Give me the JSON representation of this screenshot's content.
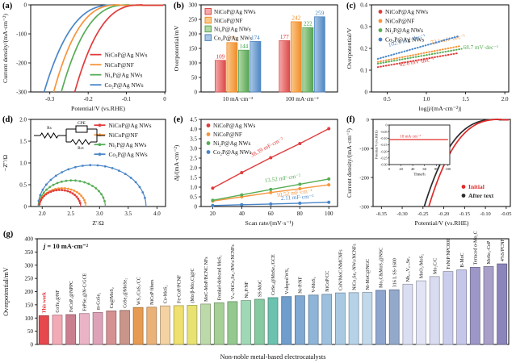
{
  "figure": {
    "background": "#ffffff"
  },
  "palette": {
    "red": {
      "line": "#e23b3b",
      "fill": "#f6a9a9",
      "edge": "#dc4a4a",
      "label": "#e02a2a"
    },
    "orange": {
      "line": "#f6953c",
      "fill": "#fbc98b",
      "edge": "#f08c28",
      "label": "#ee8418"
    },
    "green": {
      "line": "#57ad57",
      "fill": "#b2d8a4",
      "edge": "#55a455",
      "label": "#2f9e3e"
    },
    "blue": {
      "line": "#4a86c8",
      "fill": "#a9c7e6",
      "edge": "#4f86c2",
      "label": "#3f7fc1"
    },
    "black": "#222222"
  },
  "panels": {
    "a": {
      "label": "(a)"
    },
    "b": {
      "label": "(b)"
    },
    "c": {
      "label": "(c)"
    },
    "d": {
      "label": "(d)"
    },
    "e": {
      "label": "(e)"
    },
    "f": {
      "label": "(f)"
    },
    "g": {
      "label": "(g)"
    }
  },
  "chart_data": [
    {
      "panel": "a",
      "type": "line",
      "xlabel": "Potential/V (vs.RHE)",
      "ylabel": "Current density/(mA·cm⁻²)",
      "xlim": [
        -0.35,
        0.002
      ],
      "ylim": [
        -300,
        0
      ],
      "xticks": [
        -0.3,
        -0.2,
        -0.1,
        0
      ],
      "xtick_labels": [
        "-0.3",
        "-0.2",
        "-0.1",
        "0"
      ],
      "yticks": [
        0,
        -100,
        -200,
        -300
      ],
      "ytick_labels": [
        "0",
        "-100",
        "-200",
        "-300"
      ],
      "legend_position": "bottom-right",
      "series": [
        {
          "name": "NiCoP@Ag NWs",
          "color_key": "red",
          "onset": -0.056,
          "v_at_300": -0.235
        },
        {
          "name": "NiCoP@NF",
          "color_key": "orange",
          "onset": -0.115,
          "v_at_300": -0.29
        },
        {
          "name": "Ni₂P@Ag NWs",
          "color_key": "green",
          "onset": -0.091,
          "v_at_300": -0.27
        },
        {
          "name": "Co₂P@Ag NWs",
          "color_key": "blue",
          "onset": -0.125,
          "v_at_300": -0.315
        }
      ]
    },
    {
      "panel": "b",
      "type": "grouped-bar",
      "ylabel": "Overpotential/mV",
      "xlim": [
        0,
        1
      ],
      "ylim": [
        0,
        300
      ],
      "yticks": [
        0,
        50,
        100,
        150,
        200,
        250,
        300
      ],
      "ytick_labels": [
        "0",
        "50",
        "100",
        "150",
        "200",
        "250",
        "300"
      ],
      "categories": [
        "10 mA·cm⁻²",
        "100 mA·cm⁻²"
      ],
      "legend_position": "top-left",
      "series": [
        {
          "name": "NiCoP@Ag NWs",
          "color_key": "red",
          "values": [
            109,
            177
          ]
        },
        {
          "name": "NiCoP@NF",
          "color_key": "orange",
          "values": [
            170,
            242
          ]
        },
        {
          "name": "Ni₂P@Ag NWs",
          "color_key": "green",
          "values": [
            144,
            222
          ]
        },
        {
          "name": "Co₂P@Ag NWs",
          "color_key": "blue",
          "values": [
            174,
            259
          ]
        }
      ]
    },
    {
      "panel": "c",
      "type": "line",
      "xlabel": "log|j/(mA·cm⁻²)|",
      "ylabel": "Overpotential/V",
      "xlim": [
        0.3,
        2.05
      ],
      "ylim": [
        0,
        0.4
      ],
      "xticks": [
        0.5,
        1.0,
        1.5,
        2.0
      ],
      "xtick_labels": [
        "0.5",
        "1.0",
        "1.5",
        "2.0"
      ],
      "yticks": [
        0,
        0.1,
        0.2,
        0.3,
        0.4
      ],
      "ytick_labels": [
        "0",
        "0.1",
        "0.2",
        "0.3",
        "0.4"
      ],
      "legend_position": "top-left",
      "series": [
        {
          "name": "NiCoP@Ag NWs",
          "color_key": "red",
          "x": [
            0.38,
            1.4
          ],
          "y": [
            0.114,
            0.178
          ],
          "slope_label": "62.6 mV·dec⁻¹",
          "label_at": [
            0.66,
            0.118
          ],
          "label_angle": -9
        },
        {
          "name": "NiCoP@NF",
          "color_key": "orange",
          "x": [
            0.38,
            1.42
          ],
          "y": [
            0.138,
            0.21
          ],
          "slope_label": "72.1 mV·dec⁻¹",
          "label_at": [
            1.06,
            0.218
          ],
          "label_angle": -11
        },
        {
          "name": "Ni₂P@Ag NWs",
          "color_key": "green",
          "x": [
            0.38,
            1.45
          ],
          "y": [
            0.13,
            0.198
          ],
          "slope_label": "68.7 mV·dec⁻¹",
          "label_at": [
            1.47,
            0.196
          ],
          "label_angle": 0
        },
        {
          "name": "Co₂P@Ag NWs",
          "color_key": "blue",
          "x": [
            0.38,
            1.4
          ],
          "y": [
            0.152,
            0.255
          ],
          "slope_label": "102.1 mV·dec⁻¹",
          "label_at": [
            0.52,
            0.208
          ],
          "label_angle": -14
        }
      ]
    },
    {
      "panel": "d",
      "type": "nyquist",
      "xlabel": "Z′/Ω",
      "ylabel": "−Z″/Ω",
      "xlim": [
        1.8,
        4.15
      ],
      "ylim": [
        0,
        2.0
      ],
      "xticks": [
        2.0,
        2.5,
        3.0,
        3.5,
        4.0
      ],
      "xtick_labels": [
        "2.0",
        "2.5",
        "3.0",
        "3.5",
        "4.0"
      ],
      "yticks": [
        0,
        0.5,
        1.0,
        1.5,
        2.0
      ],
      "ytick_labels": [
        "0",
        "0.5",
        "1.0",
        "1.5",
        "2.0"
      ],
      "legend_position": "top-right",
      "circuit": {
        "rs": "Rs",
        "cpe": "CPE",
        "rct": "Rct"
      },
      "series": [
        {
          "name": "NiCoP@Ag NWs",
          "color_key": "red",
          "x_start": 1.95,
          "x_end": 2.67,
          "peak": 0.38
        },
        {
          "name": "NiCoP@NF",
          "color_key": "orange",
          "x_start": 1.95,
          "x_end": 2.76,
          "peak": 0.42
        },
        {
          "name": "Ni₂P@Ag NWs",
          "color_key": "green",
          "x_start": 1.94,
          "x_end": 3.1,
          "peak": 0.6
        },
        {
          "name": "Co₂P@Ag NWs",
          "color_key": "blue",
          "x_start": 1.93,
          "x_end": 3.81,
          "peak": 0.95
        }
      ]
    },
    {
      "panel": "e",
      "type": "scatter-line",
      "xlabel": "Scan rate/(mV·s⁻¹)",
      "ylabel": "Δj/(mA·cm⁻²)",
      "xlim": [
        12,
        106
      ],
      "ylim": [
        0,
        4.5
      ],
      "xticks": [
        20,
        40,
        60,
        80,
        100
      ],
      "xtick_labels": [
        "20",
        "40",
        "60",
        "80",
        "100"
      ],
      "yticks": [
        0,
        0.5,
        1,
        1.5,
        2,
        2.5,
        3,
        3.5,
        4,
        4.5
      ],
      "ytick_labels": [
        "0",
        "0.5",
        "1.0",
        "1.5",
        "2.0",
        "2.5",
        "3.0",
        "3.5",
        "4.0",
        "4.5"
      ],
      "legend_position": "top-left",
      "x": [
        20,
        40,
        60,
        80,
        100
      ],
      "series": [
        {
          "name": "NiCoP@Ag NWs",
          "color_key": "red",
          "values": [
            0.95,
            1.75,
            2.52,
            3.25,
            4.02
          ],
          "slope_label": "38.39 mF·cm⁻²",
          "label_at": [
            47,
            2.55
          ],
          "label_angle": -28
        },
        {
          "name": "NiCoP@NF",
          "color_key": "orange",
          "values": [
            0.28,
            0.5,
            0.72,
            0.92,
            1.12
          ],
          "slope_label": "10.52 mF·cm⁻²",
          "label_at": [
            64,
            0.5
          ],
          "label_angle": -7
        },
        {
          "name": "Ni₂P@Ag NWs",
          "color_key": "green",
          "values": [
            0.32,
            0.6,
            0.88,
            1.15,
            1.42
          ],
          "slope_label": "13.52 mF·cm⁻²",
          "label_at": [
            56,
            1.24
          ],
          "label_angle": -8
        },
        {
          "name": "Co₂P@Ag NWs",
          "color_key": "blue",
          "values": [
            0.05,
            0.09,
            0.13,
            0.17,
            0.22
          ],
          "slope_label": "2.11 mF·cm⁻²",
          "label_at": [
            67,
            0.34
          ],
          "label_angle": -3
        }
      ]
    },
    {
      "panel": "f",
      "type": "line",
      "xlabel": "Potential/V (vs.RHE)",
      "ylabel": "Current density/(mA·cm⁻²)",
      "xlim": [
        -0.37,
        -0.04
      ],
      "ylim": [
        -300,
        0
      ],
      "xticks": [
        -0.35,
        -0.3,
        -0.25,
        -0.2,
        -0.15,
        -0.1,
        -0.05
      ],
      "xtick_labels": [
        "-0.35",
        "-0.30",
        "-0.25",
        "-0.20",
        "-0.15",
        "-0.10",
        "-0.05"
      ],
      "yticks": [
        0,
        -100,
        -200,
        -300
      ],
      "ytick_labels": [
        "0",
        "-100",
        "-200",
        "-300"
      ],
      "legend_position": "bottom-right",
      "series": [
        {
          "name": "Initial",
          "color": "#e02a2a",
          "onset": -0.058,
          "v_at_300": -0.236
        },
        {
          "name": "After text",
          "color": "#2b2b2b",
          "onset": -0.066,
          "v_at_300": -0.247
        }
      ],
      "inset": {
        "xlabel": "Time/h",
        "ylabel": "Potential/V (vs.RHE)",
        "xlim": [
          0,
          103
        ],
        "ylim": [
          -0.3,
          0
        ],
        "xticks": [
          0,
          20,
          40,
          60,
          80,
          100
        ],
        "xtick_labels": [
          "0",
          "20",
          "40",
          "60",
          "80",
          "100"
        ],
        "yticks": [
          0,
          -0.05,
          -0.1,
          -0.15,
          -0.2,
          -0.25,
          -0.3
        ],
        "ytick_labels": [
          "0",
          "-0.05",
          "-0.10",
          "-0.15",
          "-0.20",
          "-0.25",
          "-0.30"
        ],
        "line_y": -0.11,
        "annotation": "10 mA·cm⁻²"
      }
    },
    {
      "panel": "g",
      "type": "bar",
      "annotation_italic": "j",
      "annotation_rest": " = 10 mA·cm⁻²",
      "xlabel": "Non-noble metal-based electrocatalysts",
      "ylabel": "Overpotential/mV",
      "xlim": [
        0,
        1
      ],
      "ylim": [
        0,
        400
      ],
      "yticks": [
        0,
        50,
        100,
        150,
        200,
        250,
        300,
        350,
        400
      ],
      "ytick_labels": [
        "0",
        "50",
        "100",
        "150",
        "200",
        "250",
        "300",
        "350",
        "400"
      ],
      "highlight_index": 0,
      "highlight_color": "#e02a2a",
      "categories": [
        "This work",
        "CoTe₂@NF",
        "FeCoP₂@NPPC",
        "FePSe₃@N-C/GCE",
        "m-CoSe₂",
        "Cu@MoS₂",
        "CoSe₂@MoSe₂",
        "WS₂/CoS₂/CC",
        "NiCoP fibers",
        "Co-MoS₂",
        "Fe-CoP/PCNF",
        "(Mo/β-Mo₂C)@C",
        "MoC-MoP/BCNC NFs",
        "Frenkel-defected MoS₂",
        "Vₛₑ-NiCo₂Se₄-NWs/NCNFs",
        "Ni₂P/NF",
        "SS-MoC",
        "CoSe₂@MoSe₂/GCE",
        "V-doped WS₂",
        "Ni-P/NF",
        "V-MoS₂",
        "NiCoP/CC",
        "CoN/MoC/NMCNFs",
        "NiCo₂Se₄-NWs/NCNFs",
        "Ni-MoC@NGC",
        "Mo₂C&MoS₂@NSC",
        "316 L SS-1600",
        "Nb₀.₅V₀.₅Se₂",
        "MoO₂/MoS₂",
        "Mo₂C/C",
        "FeNiP/NPC800",
        "B-MoC",
        "Terraced α-Mo₂C",
        "MoSe₂-CoP",
        "4%S/PCNF"
      ],
      "values": [
        109,
        111,
        113,
        117,
        121,
        127,
        129,
        140,
        141,
        146,
        147,
        148,
        153,
        158,
        162,
        166,
        171,
        177,
        181,
        184,
        187,
        190,
        195,
        196,
        197,
        205,
        207,
        228,
        241,
        257,
        276,
        282,
        292,
        295,
        305
      ],
      "colors": [
        "#e6484d",
        "#f2aab6",
        "#ca7f8f",
        "#eab4c6",
        "#dda2b8",
        "#d59191",
        "#c9958a",
        "#e79b52",
        "#ebb277",
        "#f4d2a2",
        "#efe070",
        "#e7e272",
        "#bcdaa9",
        "#a5d096",
        "#93c98f",
        "#a0d8b5",
        "#86caa2",
        "#6ac2af",
        "#6f9ecd",
        "#7fa9d2",
        "#8eb5d8",
        "#9cc0de",
        "#a9c9e2",
        "#b6d2e8",
        "#c2d9ec",
        "#8ea6cf",
        "#93a9cc",
        "#dadef2",
        "#e2e4f5",
        "#d9dbf1",
        "#cacded",
        "#c4c6ea",
        "#9d97c7",
        "#a9a0ca",
        "#8c85bb"
      ]
    }
  ]
}
